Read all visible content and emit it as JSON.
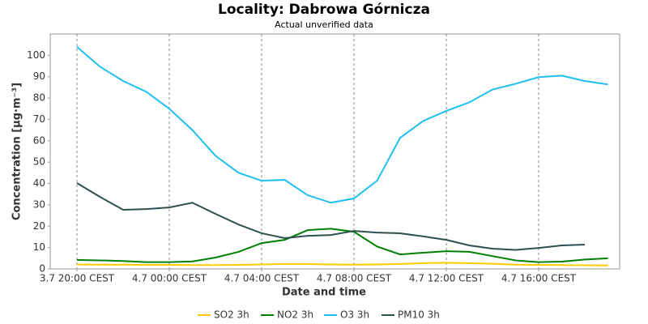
{
  "chart_data": {
    "type": "line",
    "title": "Locality: Dabrowa Górnicza",
    "subtitle": "Actual unverified data",
    "x_label": "Date and time",
    "y_label": "Concentration [µg·m⁻³]",
    "categories": [
      "3.7 20:00 CEST",
      null,
      null,
      null,
      "4.7 00:00 CEST",
      null,
      null,
      null,
      "4.7 04:00 CEST",
      null,
      null,
      null,
      "4.7 08:00 CEST",
      null,
      null,
      null,
      "4.7 12:00 CEST",
      null,
      null,
      null,
      "4.7 16:00 CEST",
      null,
      null,
      null
    ],
    "series": [
      {
        "name": "SO2 3h",
        "color": "#ffcc00",
        "values": [
          2.1,
          2.0,
          2.0,
          1.9,
          1.9,
          1.8,
          1.8,
          1.9,
          2.1,
          2.3,
          2.3,
          2.1,
          2.0,
          2.1,
          2.3,
          2.7,
          2.9,
          2.7,
          2.4,
          2.0,
          1.9,
          1.8,
          1.7,
          1.6
        ]
      },
      {
        "name": "NO2 3h",
        "color": "#008000",
        "values": [
          4.2,
          4.0,
          3.7,
          3.2,
          3.2,
          3.5,
          5.3,
          8.0,
          12.1,
          13.6,
          18.2,
          18.8,
          17.4,
          10.5,
          6.8,
          7.6,
          8.3,
          8.0,
          6.0,
          4.0,
          3.2,
          3.4,
          4.4,
          5.0
        ]
      },
      {
        "name": "O3 3h",
        "color": "#1ec0f0",
        "values": [
          104,
          94.7,
          88,
          83,
          75,
          65,
          53,
          45,
          41.3,
          41.7,
          34.5,
          31,
          33,
          41.3,
          61.4,
          69.3,
          74,
          78,
          84,
          86.7,
          89.8,
          90.5,
          88,
          86.4
        ]
      },
      {
        "name": "PM10 3h",
        "color": "#2f4f4f",
        "values": [
          40.2,
          33.7,
          27.7,
          28,
          28.8,
          31,
          25.8,
          20.8,
          16.7,
          14.4,
          15.5,
          15.9,
          17.8,
          17,
          16.7,
          15.2,
          13.6,
          11,
          9.5,
          8.9,
          9.8,
          11,
          11.4,
          null
        ]
      }
    ],
    "ylim": [
      0,
      110
    ],
    "yticks": [
      0,
      10,
      20,
      30,
      40,
      50,
      60,
      70,
      80,
      90,
      100
    ],
    "grid": true,
    "legend": "bottom"
  }
}
